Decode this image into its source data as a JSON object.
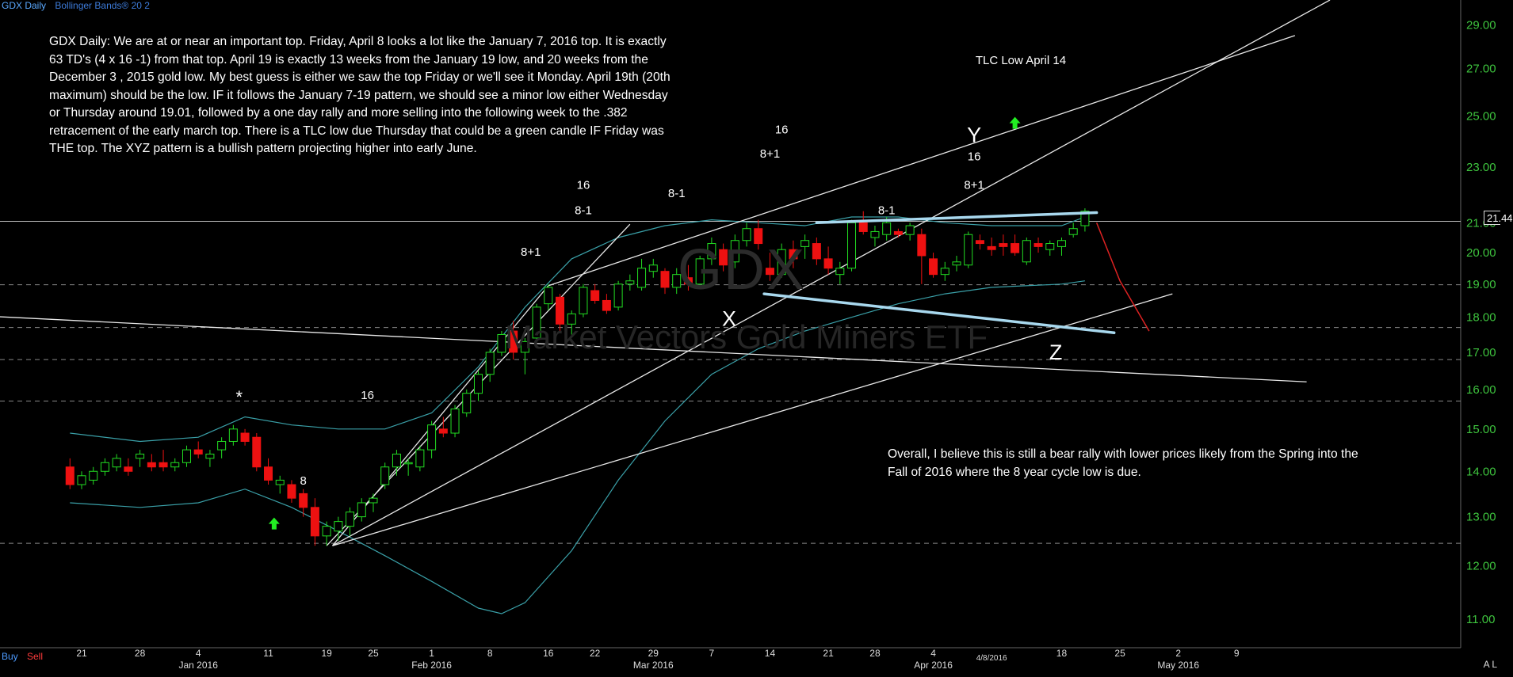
{
  "header": {
    "symbol": "GDX Daily",
    "indicator": "Bollinger Bands® 20 2"
  },
  "commentary": "GDX Daily: We are at or near an important top.  Friday, April 8 looks a lot like the January 7, 2016 top. It is exactly 63 TD's (4 x 16 -1) from that top.  April 19 is exactly 13 weeks from the January 19 low, and 20 weeks from the December 3 , 2015 gold low. My best guess is either we saw the top Friday or we'll see it Monday. April 19th (20th maximum) should be the low.  IF it follows the January 7-19 pattern, we should see a minor low either Wednesday or Thursday around 19.01, followed by a one day rally and more selling into the following week to the .382 retracement of the early march top.  There is a TLC low due Thursday that could be a green candle IF Friday was THE top. The XYZ pattern is a bullish pattern projecting higher into early June.",
  "commentary2": "Overall, I believe this is still a bear rally with lower prices likely from the Spring into the Fall of 2016 where the 8 year cycle low is due.",
  "watermark": {
    "ticker": "GDX",
    "name": "Market Vectors Gold Miners ETF"
  },
  "buttons": {
    "buy": "Buy",
    "sell": "Sell"
  },
  "last_price_label": "21.44",
  "corner_icons": "A L",
  "colors": {
    "up": "#22dd22",
    "down": "#ee1111",
    "band": "#3aa0a8",
    "pattern": "#a8d8ee",
    "projection": "#dd2222",
    "arrow": "#22ee22"
  },
  "chart_data": {
    "type": "candlestick",
    "title": "",
    "xlabel": "",
    "ylabel": "",
    "ylim": [
      10.5,
      30.2
    ],
    "y_ticks": [
      "29.00",
      "27.00",
      "25.00",
      "23.00",
      "21.00",
      "20.00",
      "19.00",
      "18.00",
      "17.00",
      "16.00",
      "15.00",
      "14.00",
      "13.00",
      "12.00",
      "11.00"
    ],
    "x_ticks": [
      {
        "label": "21",
        "day": 0,
        "month": ""
      },
      {
        "label": "28",
        "day": 5,
        "month": ""
      },
      {
        "label": "4",
        "day": 10,
        "month": "Jan 2016"
      },
      {
        "label": "11",
        "day": 16,
        "month": ""
      },
      {
        "label": "19",
        "day": 21,
        "month": ""
      },
      {
        "label": "25",
        "day": 25,
        "month": ""
      },
      {
        "label": "1",
        "day": 30,
        "month": "Feb 2016"
      },
      {
        "label": "8",
        "day": 35,
        "month": ""
      },
      {
        "label": "16",
        "day": 40,
        "month": ""
      },
      {
        "label": "22",
        "day": 44,
        "month": ""
      },
      {
        "label": "29",
        "day": 49,
        "month": "Mar 2016"
      },
      {
        "label": "7",
        "day": 54,
        "month": ""
      },
      {
        "label": "14",
        "day": 59,
        "month": ""
      },
      {
        "label": "21",
        "day": 64,
        "month": ""
      },
      {
        "label": "28",
        "day": 68,
        "month": ""
      },
      {
        "label": "4",
        "day": 73,
        "month": "Apr 2016"
      },
      {
        "label": "4/8/2016",
        "day": 78,
        "month": ""
      },
      {
        "label": "18",
        "day": 84,
        "month": ""
      },
      {
        "label": "25",
        "day": 89,
        "month": ""
      },
      {
        "label": "2",
        "day": 94,
        "month": "May 2016"
      },
      {
        "label": "9",
        "day": 99,
        "month": ""
      }
    ],
    "candles": [
      [
        -1,
        14.1,
        14.3,
        13.6,
        13.7
      ],
      [
        0,
        13.7,
        14.0,
        13.6,
        13.9
      ],
      [
        1,
        13.8,
        14.1,
        13.7,
        14.0
      ],
      [
        2,
        14.0,
        14.3,
        13.9,
        14.2
      ],
      [
        3,
        14.1,
        14.4,
        14.0,
        14.3
      ],
      [
        4,
        14.1,
        14.3,
        13.9,
        14.0
      ],
      [
        5,
        14.3,
        14.5,
        14.1,
        14.4
      ],
      [
        6,
        14.2,
        14.4,
        14.0,
        14.1
      ],
      [
        7,
        14.2,
        14.5,
        14.0,
        14.1
      ],
      [
        8,
        14.1,
        14.3,
        14.0,
        14.2
      ],
      [
        9,
        14.2,
        14.6,
        14.1,
        14.5
      ],
      [
        10,
        14.5,
        14.7,
        14.3,
        14.4
      ],
      [
        11,
        14.3,
        14.5,
        14.1,
        14.4
      ],
      [
        12,
        14.5,
        14.8,
        14.3,
        14.7
      ],
      [
        13,
        14.7,
        15.1,
        14.6,
        15.0
      ],
      [
        14,
        14.9,
        15.0,
        14.6,
        14.7
      ],
      [
        15,
        14.8,
        14.9,
        14.0,
        14.1
      ],
      [
        16,
        14.1,
        14.3,
        13.7,
        13.8
      ],
      [
        17,
        13.7,
        13.9,
        13.5,
        13.8
      ],
      [
        18,
        13.7,
        13.8,
        13.3,
        13.4
      ],
      [
        19,
        13.5,
        13.6,
        13.0,
        13.2
      ],
      [
        20,
        13.2,
        13.4,
        12.4,
        12.6
      ],
      [
        21,
        12.6,
        12.9,
        12.4,
        12.8
      ],
      [
        22,
        12.7,
        13.0,
        12.5,
        12.9
      ],
      [
        23,
        12.8,
        13.2,
        12.6,
        13.1
      ],
      [
        24,
        13.0,
        13.4,
        12.9,
        13.3
      ],
      [
        25,
        13.3,
        13.5,
        13.1,
        13.4
      ],
      [
        26,
        13.7,
        14.2,
        13.6,
        14.1
      ],
      [
        27,
        14.1,
        14.5,
        13.9,
        14.4
      ],
      [
        28,
        14.2,
        14.3,
        13.9,
        14.2
      ],
      [
        29,
        14.1,
        14.6,
        14.0,
        14.5
      ],
      [
        30,
        14.5,
        15.2,
        14.3,
        15.1
      ],
      [
        31,
        15.0,
        15.3,
        14.8,
        14.9
      ],
      [
        32,
        14.9,
        15.6,
        14.8,
        15.5
      ],
      [
        33,
        15.4,
        16.0,
        15.3,
        15.9
      ],
      [
        34,
        15.9,
        16.5,
        15.7,
        16.4
      ],
      [
        35,
        16.4,
        17.1,
        16.2,
        17.0
      ],
      [
        36,
        17.0,
        17.6,
        16.9,
        17.5
      ],
      [
        37,
        17.6,
        17.9,
        16.8,
        17.0
      ],
      [
        38,
        17.0,
        17.4,
        16.4,
        17.3
      ],
      [
        39,
        17.4,
        18.4,
        17.3,
        18.3
      ],
      [
        40,
        18.4,
        19.0,
        18.2,
        18.9
      ],
      [
        41,
        18.6,
        18.7,
        17.6,
        17.8
      ],
      [
        42,
        17.8,
        18.2,
        17.5,
        18.1
      ],
      [
        43,
        18.1,
        19.0,
        18.0,
        18.9
      ],
      [
        44,
        18.8,
        19.0,
        18.4,
        18.5
      ],
      [
        45,
        18.5,
        18.7,
        18.1,
        18.2
      ],
      [
        46,
        18.3,
        19.1,
        18.2,
        19.0
      ],
      [
        47,
        19.0,
        19.3,
        18.8,
        19.1
      ],
      [
        48,
        18.9,
        19.8,
        18.8,
        19.5
      ],
      [
        49,
        19.4,
        19.8,
        19.2,
        19.6
      ],
      [
        50,
        19.4,
        19.5,
        18.7,
        18.9
      ],
      [
        51,
        18.9,
        19.5,
        18.7,
        19.3
      ],
      [
        52,
        19.2,
        19.6,
        18.8,
        19.0
      ],
      [
        53,
        19.0,
        19.9,
        18.9,
        19.8
      ],
      [
        54,
        19.8,
        20.5,
        19.6,
        20.3
      ],
      [
        55,
        20.1,
        20.3,
        19.4,
        19.6
      ],
      [
        56,
        19.7,
        20.6,
        19.5,
        20.4
      ],
      [
        57,
        20.4,
        21.0,
        20.2,
        20.8
      ],
      [
        58,
        20.8,
        21.1,
        20.1,
        20.3
      ],
      [
        59,
        19.5,
        20.0,
        19.1,
        19.3
      ],
      [
        60,
        19.3,
        20.3,
        19.2,
        20.1
      ],
      [
        61,
        20.1,
        20.4,
        19.5,
        19.8
      ],
      [
        62,
        20.2,
        20.6,
        19.8,
        20.4
      ],
      [
        63,
        20.3,
        20.5,
        19.6,
        19.8
      ],
      [
        64,
        19.8,
        20.2,
        19.3,
        19.5
      ],
      [
        65,
        19.3,
        19.7,
        19.0,
        19.5
      ],
      [
        66,
        19.5,
        21.1,
        19.4,
        21.0
      ],
      [
        67,
        21.0,
        21.4,
        20.6,
        20.7
      ],
      [
        68,
        20.5,
        20.9,
        20.2,
        20.7
      ],
      [
        69,
        20.6,
        21.2,
        20.4,
        21.0
      ],
      [
        70,
        20.7,
        20.8,
        20.5,
        20.6
      ],
      [
        71,
        20.6,
        21.0,
        20.4,
        20.9
      ],
      [
        72,
        20.6,
        20.8,
        19.0,
        19.9
      ],
      [
        73,
        19.8,
        20.0,
        19.2,
        19.3
      ],
      [
        74,
        19.3,
        19.7,
        19.1,
        19.5
      ],
      [
        75,
        19.6,
        19.9,
        19.4,
        19.7
      ],
      [
        76,
        19.6,
        20.7,
        19.5,
        20.6
      ],
      [
        77,
        20.4,
        20.6,
        20.1,
        20.3
      ],
      [
        78,
        20.2,
        20.5,
        19.9,
        20.1
      ],
      [
        79,
        20.3,
        20.6,
        19.9,
        20.2
      ],
      [
        80,
        20.3,
        20.6,
        19.9,
        20.0
      ],
      [
        81,
        19.7,
        20.5,
        19.6,
        20.4
      ],
      [
        82,
        20.3,
        20.5,
        20.0,
        20.2
      ],
      [
        83,
        20.1,
        20.4,
        19.9,
        20.3
      ],
      [
        84,
        20.2,
        20.5,
        19.9,
        20.4
      ],
      [
        85,
        20.6,
        21.0,
        20.5,
        20.8
      ],
      [
        86,
        20.9,
        21.5,
        20.7,
        21.4
      ]
    ],
    "bollinger_upper": [
      [
        -1,
        14.9
      ],
      [
        5,
        14.7
      ],
      [
        10,
        14.8
      ],
      [
        14,
        15.3
      ],
      [
        18,
        15.1
      ],
      [
        22,
        15.0
      ],
      [
        26,
        15.0
      ],
      [
        30,
        15.4
      ],
      [
        34,
        16.6
      ],
      [
        38,
        18.3
      ],
      [
        42,
        19.8
      ],
      [
        46,
        20.5
      ],
      [
        50,
        20.9
      ],
      [
        54,
        21.1
      ],
      [
        58,
        21.0
      ],
      [
        62,
        20.9
      ],
      [
        66,
        21.2
      ],
      [
        70,
        21.2
      ],
      [
        74,
        21.0
      ],
      [
        78,
        20.9
      ],
      [
        84,
        20.9
      ],
      [
        86,
        21.2
      ]
    ],
    "bollinger_lower": [
      [
        -1,
        13.3
      ],
      [
        5,
        13.2
      ],
      [
        10,
        13.3
      ],
      [
        14,
        13.6
      ],
      [
        18,
        13.2
      ],
      [
        22,
        12.7
      ],
      [
        26,
        12.2
      ],
      [
        30,
        11.7
      ],
      [
        34,
        11.2
      ],
      [
        36,
        11.1
      ],
      [
        38,
        11.3
      ],
      [
        42,
        12.3
      ],
      [
        46,
        13.8
      ],
      [
        50,
        15.2
      ],
      [
        54,
        16.4
      ],
      [
        58,
        17.1
      ],
      [
        62,
        17.6
      ],
      [
        66,
        18.0
      ],
      [
        70,
        18.4
      ],
      [
        74,
        18.7
      ],
      [
        78,
        18.9
      ],
      [
        84,
        19.0
      ],
      [
        86,
        19.1
      ]
    ],
    "horizontal_lines": [
      {
        "y": 21.05,
        "style": "solid"
      },
      {
        "y": 18.98,
        "style": "dashed"
      },
      {
        "y": 17.7,
        "style": "dashed"
      },
      {
        "y": 16.8,
        "style": "dashed"
      },
      {
        "y": 15.7,
        "style": "dashed"
      },
      {
        "y": 12.45,
        "style": "dashed"
      }
    ],
    "trendlines": [
      {
        "x1": 21,
        "y1": 12.4,
        "x2": 47,
        "y2": 20.95
      },
      {
        "x1": 21.5,
        "y1": 12.4,
        "x2": 40,
        "y2": 18.95
      },
      {
        "x1": 21.5,
        "y1": 12.4,
        "x2": 93.5,
        "y2": 18.7
      },
      {
        "x1": 40,
        "y1": 18.95,
        "x2": 104,
        "y2": 28.5
      },
      {
        "x1": 21.5,
        "y1": 12.4,
        "x2": 107,
        "y2": 30.2
      },
      {
        "x1": -12,
        "y1": 18.1,
        "x2": 105,
        "y2": 16.2
      }
    ],
    "pattern_lines": [
      {
        "x1": 63,
        "y1": 21.0,
        "x2": 87,
        "y2": 21.35
      },
      {
        "x1": 58.5,
        "y1": 18.7,
        "x2": 88.5,
        "y2": 17.55
      }
    ],
    "projection": [
      [
        87,
        21.0
      ],
      [
        89,
        19.1
      ],
      [
        91.5,
        17.6
      ]
    ],
    "annotations": [
      {
        "text": "*",
        "x": 13.5,
        "y": 15.65
      },
      {
        "text": "8",
        "x": 19,
        "y": 13.7
      },
      {
        "text": "16",
        "x": 24.5,
        "y": 15.75
      },
      {
        "text": "8+1",
        "x": 38.5,
        "y": 19.9
      },
      {
        "text": "16",
        "x": 43,
        "y": 22.2
      },
      {
        "text": "8-1",
        "x": 43,
        "y": 21.3
      },
      {
        "text": "8-1",
        "x": 51,
        "y": 21.9
      },
      {
        "text": "16",
        "x": 60,
        "y": 24.3
      },
      {
        "text": "8+1",
        "x": 59,
        "y": 23.35
      },
      {
        "text": "8-1",
        "x": 69,
        "y": 21.3
      },
      {
        "text": "Y",
        "x": 76.5,
        "y": 23.95
      },
      {
        "text": "16",
        "x": 76.5,
        "y": 23.25
      },
      {
        "text": "8+1",
        "x": 76.5,
        "y": 22.2
      },
      {
        "text": "X",
        "x": 55.5,
        "y": 17.75
      },
      {
        "text": "Z",
        "x": 83.5,
        "y": 16.8
      },
      {
        "text": "TLC Low April 14",
        "x": 80.5,
        "y": 27.2
      }
    ],
    "arrows": [
      {
        "x": 16.5,
        "y": 12.85
      },
      {
        "x": 80,
        "y": 24.7
      }
    ]
  }
}
